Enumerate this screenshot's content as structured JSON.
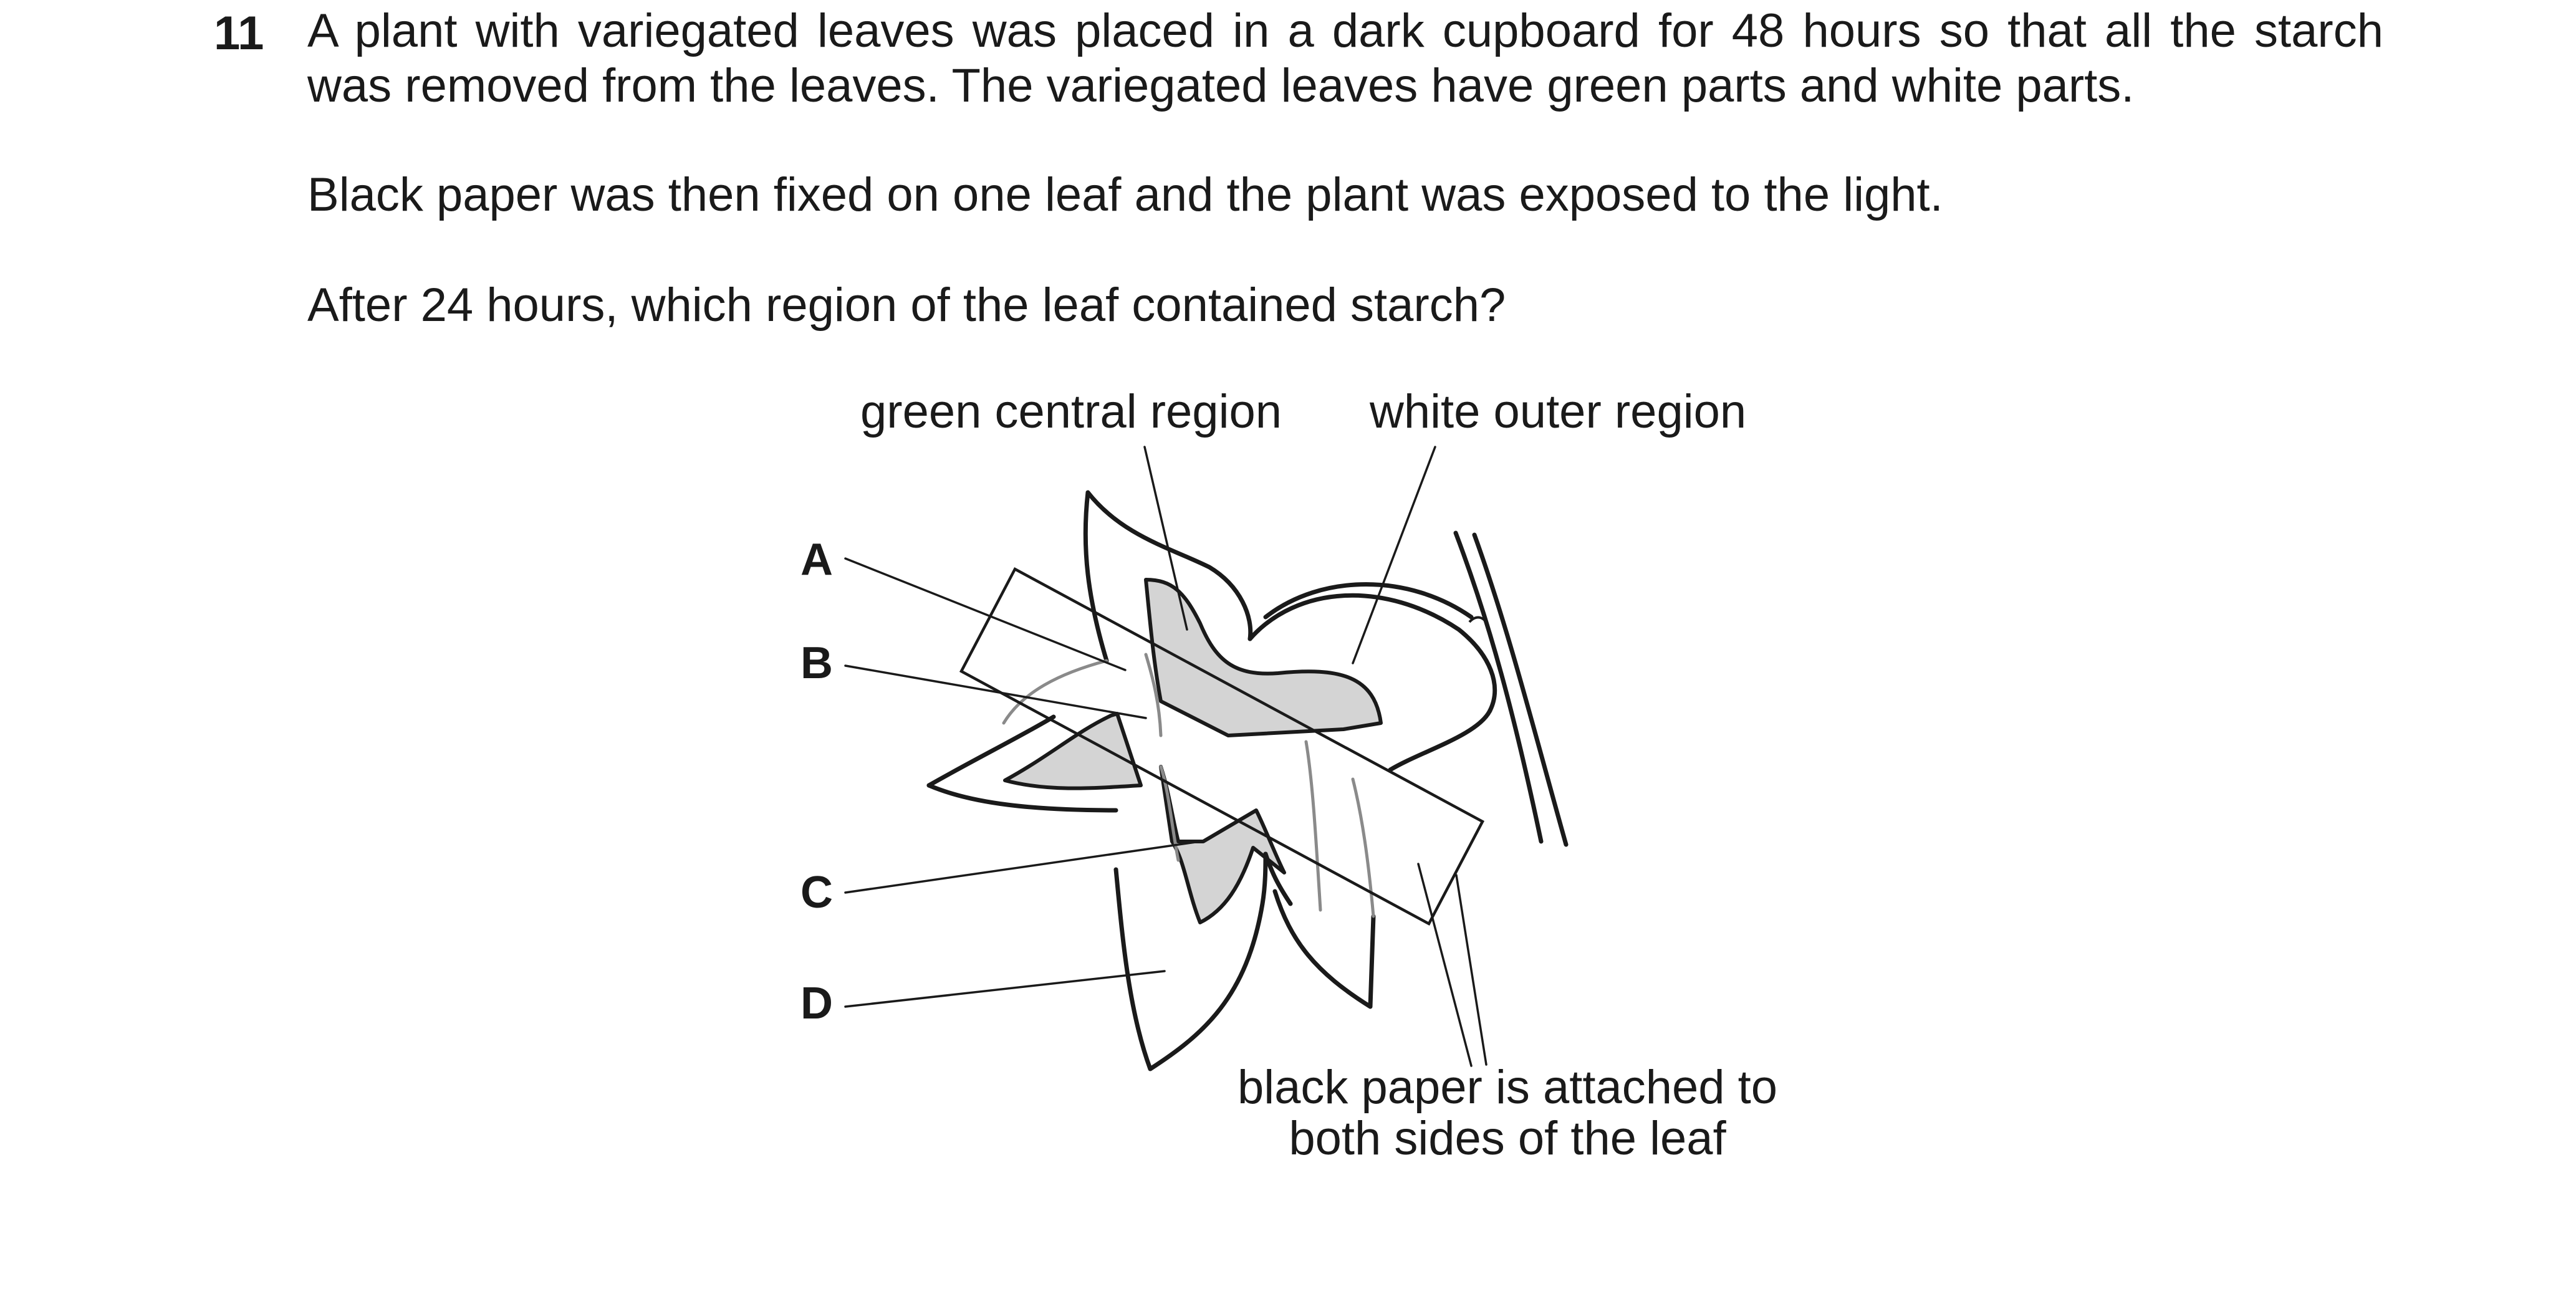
{
  "question": {
    "number": "11",
    "paragraph_1": "A plant with variegated leaves was placed in a dark cupboard for 48 hours so that all the starch was removed from the leaves. The variegated leaves have green parts and white parts.",
    "paragraph_2": "Black paper was then fixed on one leaf and the plant was exposed to the light.",
    "paragraph_3": "After 24 hours, which region of the leaf contained starch?"
  },
  "diagram": {
    "label_green": "green central region",
    "label_white": "white outer region",
    "label_paper_line1": "black paper is attached to",
    "label_paper_line2": "both sides of the leaf",
    "options": [
      "A",
      "B",
      "C",
      "D"
    ],
    "colors": {
      "green_region_fill": "#d4d4d4",
      "outline": "#1a1a1a",
      "hidden_outline": "#8a8a8a"
    }
  }
}
